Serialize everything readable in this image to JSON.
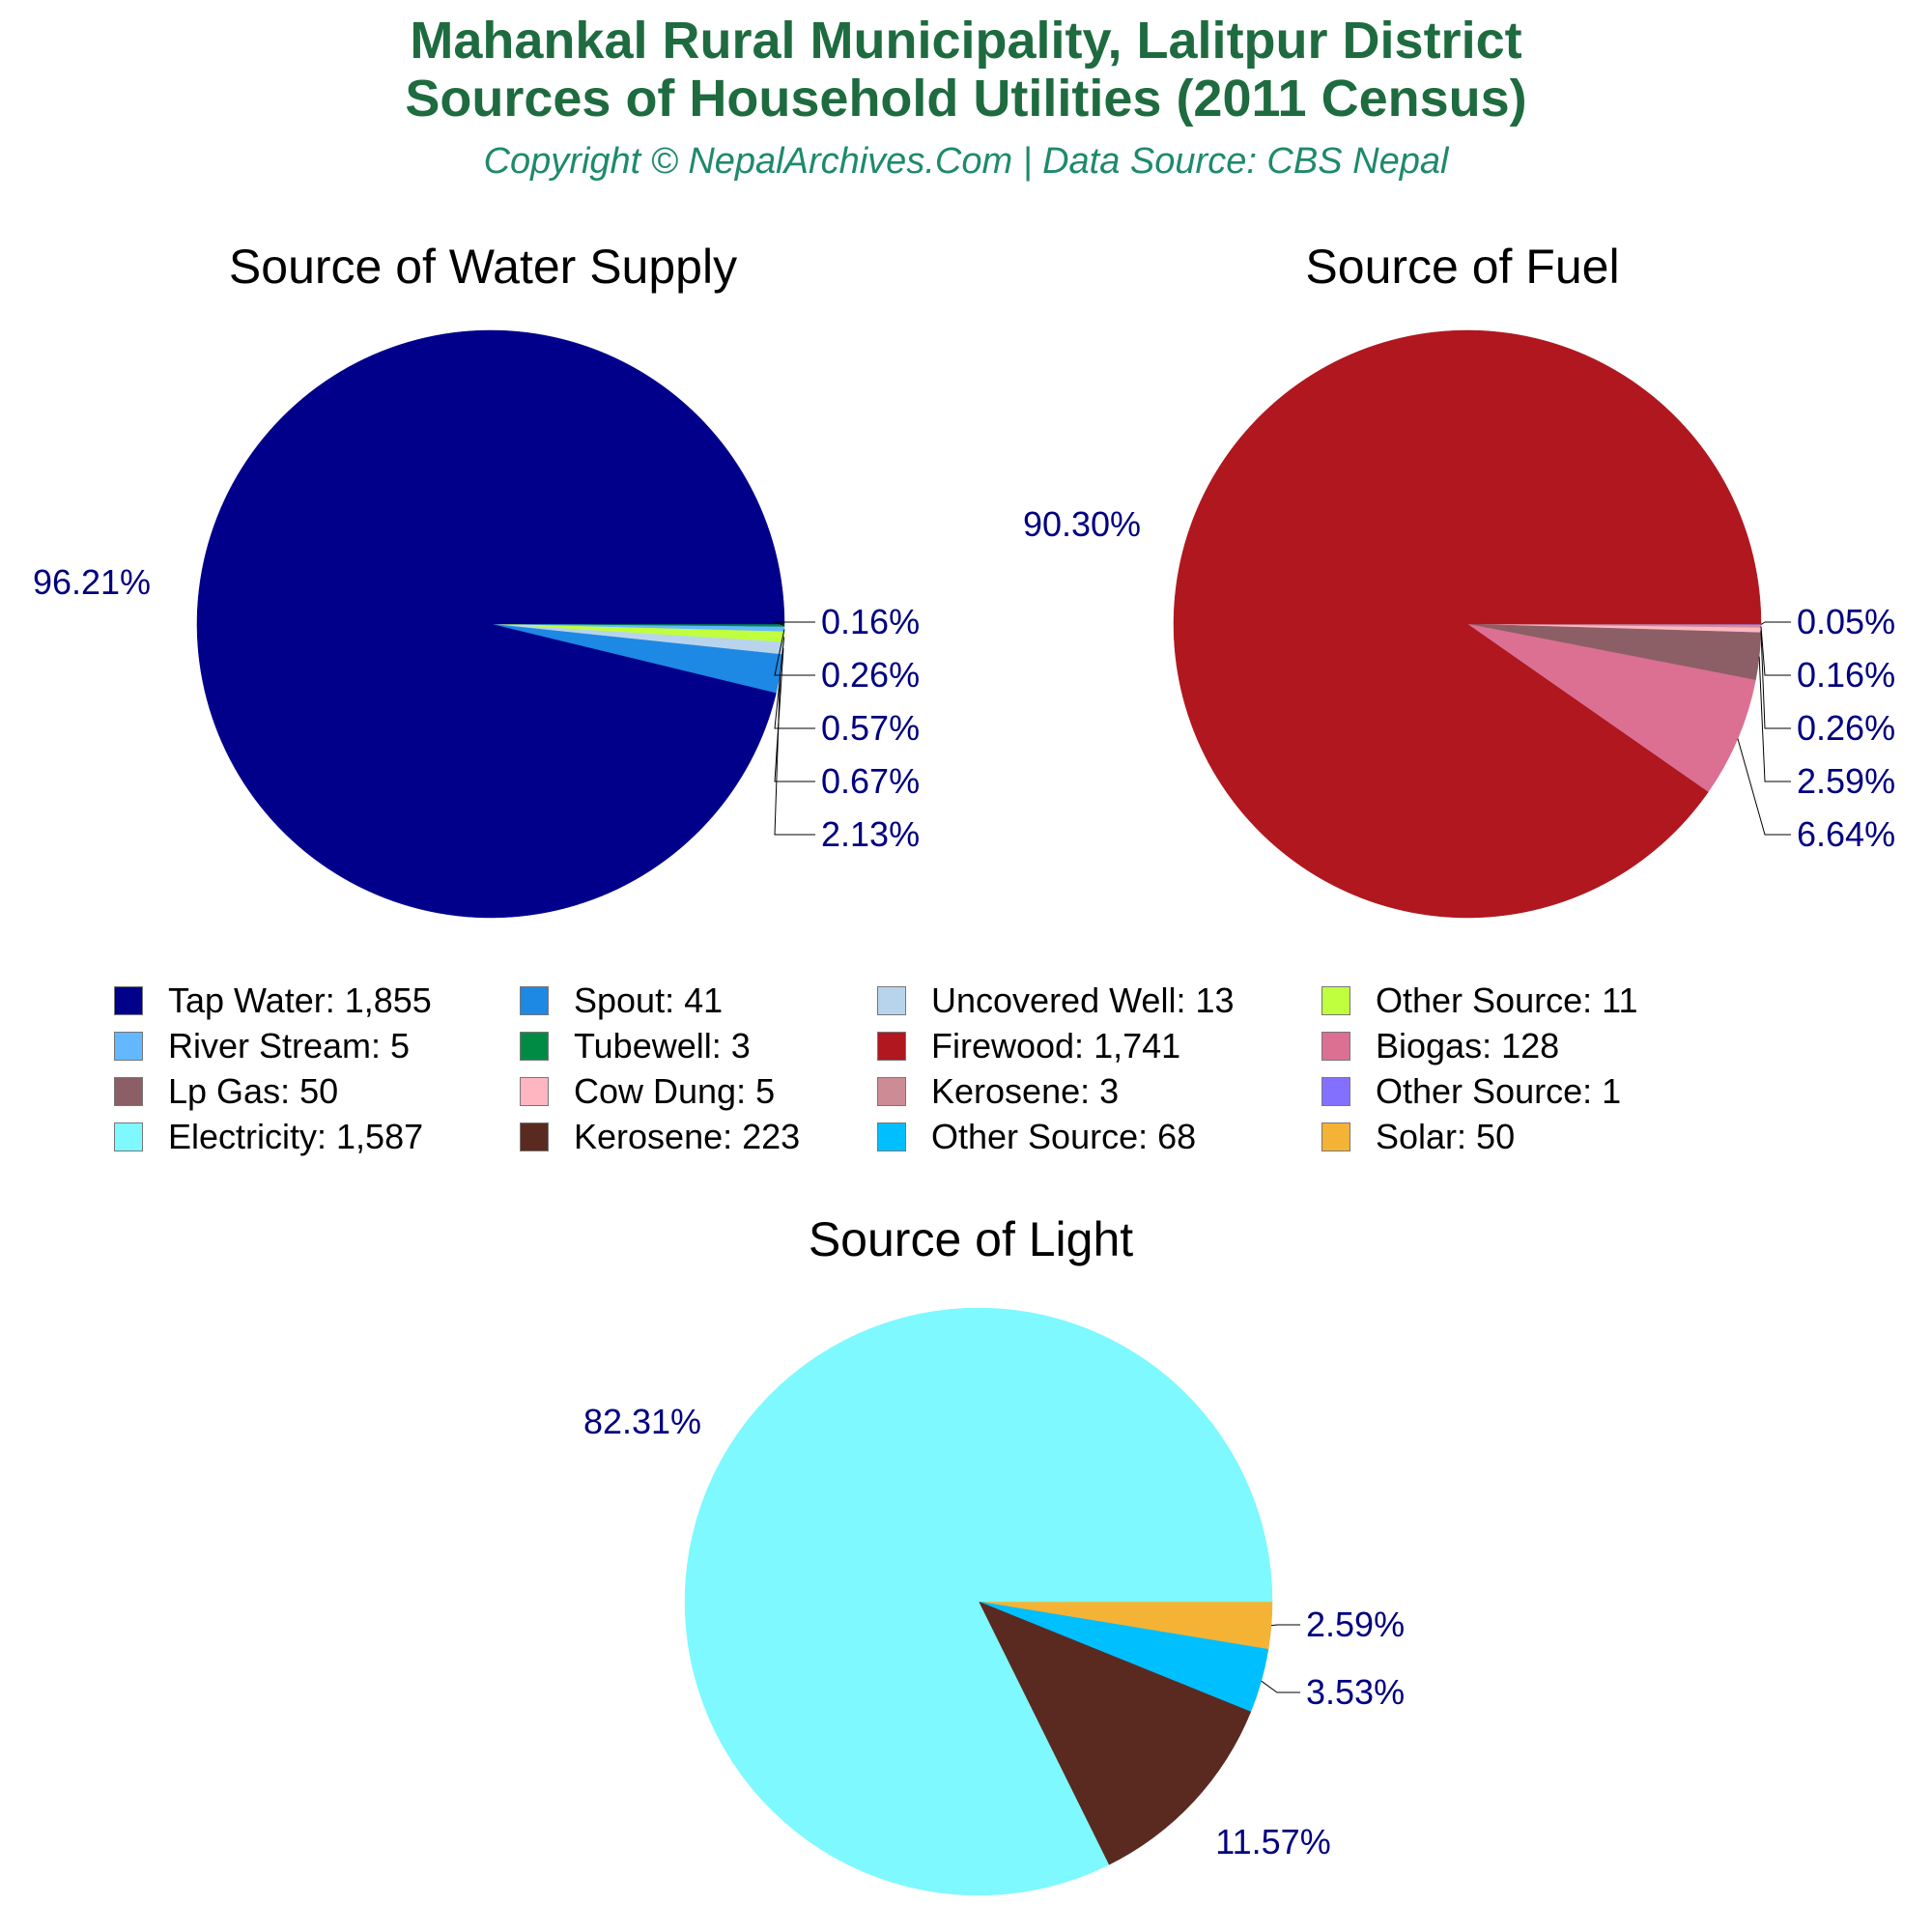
{
  "header": {
    "title_line_1": "Mahankal Rural Municipality, Lalitpur District",
    "title_line_2": "Sources of Household Utilities (2011 Census)",
    "subtitle": "Copyright © NepalArchives.Com | Data Source: CBS Nepal"
  },
  "colors": {
    "title": "#1e6b3f",
    "subtitle": "#1e8a6a",
    "percent_label": "#000080"
  },
  "chart_data": [
    {
      "type": "pie",
      "title": "Source of Water Supply",
      "slices": [
        {
          "label": "Tap Water",
          "value": 1855,
          "percent": "96.21%",
          "color": "#00008b"
        },
        {
          "label": "Spout",
          "value": 41,
          "percent": "2.13%",
          "color": "#1e88e5"
        },
        {
          "label": "Uncovered Well",
          "value": 13,
          "percent": "0.67%",
          "color": "#b8d4ec"
        },
        {
          "label": "Other Source",
          "value": 11,
          "percent": "0.57%",
          "color": "#c0ff3e"
        },
        {
          "label": "River Stream",
          "value": 5,
          "percent": "0.26%",
          "color": "#63b8ff"
        },
        {
          "label": "Tubewell",
          "value": 3,
          "percent": "0.16%",
          "color": "#008b45"
        }
      ]
    },
    {
      "type": "pie",
      "title": "Source of Fuel",
      "slices": [
        {
          "label": "Firewood",
          "value": 1741,
          "percent": "90.30%",
          "color": "#b0171f"
        },
        {
          "label": "Biogas",
          "value": 128,
          "percent": "6.64%",
          "color": "#db7093"
        },
        {
          "label": "Lp Gas",
          "value": 50,
          "percent": "2.59%",
          "color": "#8b5f65"
        },
        {
          "label": "Cow Dung",
          "value": 5,
          "percent": "0.26%",
          "color": "#ffb6c1"
        },
        {
          "label": "Kerosene",
          "value": 3,
          "percent": "0.16%",
          "color": "#cd8c95"
        },
        {
          "label": "Other Source",
          "value": 1,
          "percent": "0.05%",
          "color": "#8470ff"
        }
      ]
    },
    {
      "type": "pie",
      "title": "Source of Light",
      "slices": [
        {
          "label": "Electricity",
          "value": 1587,
          "percent": "82.31%",
          "color": "#7df9ff"
        },
        {
          "label": "Kerosene",
          "value": 223,
          "percent": "11.57%",
          "color": "#5a2a20"
        },
        {
          "label": "Other Source",
          "value": 68,
          "percent": "3.53%",
          "color": "#00bfff"
        },
        {
          "label": "Solar",
          "value": 50,
          "percent": "2.59%",
          "color": "#f5b335"
        }
      ]
    }
  ],
  "legend": [
    {
      "text": "Tap Water: 1,855",
      "color": "#00008b"
    },
    {
      "text": "Spout: 41",
      "color": "#1e88e5"
    },
    {
      "text": "Uncovered Well: 13",
      "color": "#b8d4ec"
    },
    {
      "text": "Other Source: 11",
      "color": "#c0ff3e"
    },
    {
      "text": "River Stream: 5",
      "color": "#63b8ff"
    },
    {
      "text": "Tubewell: 3",
      "color": "#008b45"
    },
    {
      "text": "Firewood: 1,741",
      "color": "#b0171f"
    },
    {
      "text": "Biogas: 128",
      "color": "#db7093"
    },
    {
      "text": "Lp Gas: 50",
      "color": "#8b5f65"
    },
    {
      "text": "Cow Dung: 5",
      "color": "#ffb6c1"
    },
    {
      "text": "Kerosene: 3",
      "color": "#cd8c95"
    },
    {
      "text": "Other Source: 1",
      "color": "#8470ff"
    },
    {
      "text": "Electricity: 1,587",
      "color": "#7df9ff"
    },
    {
      "text": "Kerosene: 223",
      "color": "#5a2a20"
    },
    {
      "text": "Other Source: 68",
      "color": "#00bfff"
    },
    {
      "text": "Solar: 50",
      "color": "#f5b335"
    }
  ]
}
